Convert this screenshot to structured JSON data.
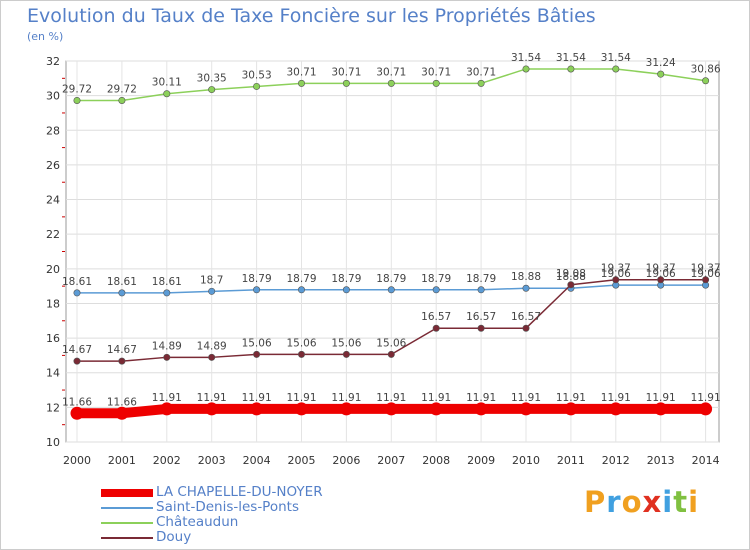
{
  "title": "Evolution du Taux de Taxe Foncière sur les Propriétés Bâties",
  "unit_label": "(en %)",
  "logo": {
    "letters": [
      "P",
      "r",
      "o",
      "x",
      "i",
      "t",
      "i"
    ],
    "colors": [
      "#f0a020",
      "#40a0e0",
      "#f0a020",
      "#e03020",
      "#40a0e0",
      "#80c040",
      "#f0a020"
    ]
  },
  "chart_data": {
    "type": "line",
    "x": [
      "2000",
      "2001",
      "2002",
      "2003",
      "2004",
      "2005",
      "2006",
      "2007",
      "2008",
      "2009",
      "2010",
      "2011",
      "2012",
      "2013",
      "2014"
    ],
    "ylim": [
      10,
      32
    ],
    "yticks": [
      10,
      12,
      14,
      16,
      18,
      20,
      22,
      24,
      26,
      28,
      30,
      32
    ],
    "grid": true,
    "legend_position": "bottom-left",
    "series": [
      {
        "name": "LA CHAPELLE-DU-NOYER",
        "color": "#ee0000",
        "values": [
          11.66,
          11.66,
          11.91,
          11.91,
          11.91,
          11.91,
          11.91,
          11.91,
          11.91,
          11.91,
          11.91,
          11.91,
          11.91,
          11.91,
          11.91
        ],
        "labels": [
          "11.66",
          "11.66",
          "11.91",
          "11.91",
          "11.91",
          "11.91",
          "11.91",
          "11.91",
          "11.91",
          "11.91",
          "11.91",
          "11.91",
          "11.91",
          "11.91",
          "11.91"
        ]
      },
      {
        "name": "Saint-Denis-les-Ponts",
        "color": "#5b9bd5",
        "values": [
          18.61,
          18.61,
          18.61,
          18.7,
          18.79,
          18.79,
          18.79,
          18.79,
          18.79,
          18.79,
          18.88,
          18.88,
          19.06,
          19.06,
          19.06
        ],
        "labels": [
          "18.61",
          "18.61",
          "18.61",
          "18.7",
          "18.79",
          "18.79",
          "18.79",
          "18.79",
          "18.79",
          "18.79",
          "18.88",
          "18.88",
          "19.06",
          "19.06",
          "19.06"
        ]
      },
      {
        "name": "Châteaudun",
        "color": "#8cd05a",
        "values": [
          29.72,
          29.72,
          30.11,
          30.35,
          30.53,
          30.71,
          30.71,
          30.71,
          30.71,
          30.71,
          31.54,
          31.54,
          31.54,
          31.24,
          30.86
        ],
        "labels": [
          "29.72",
          "29.72",
          "30.11",
          "30.35",
          "30.53",
          "30.71",
          "30.71",
          "30.71",
          "30.71",
          "30.71",
          "31.54",
          "31.54",
          "31.54",
          "31.24",
          "30.86"
        ]
      },
      {
        "name": "Douy",
        "color": "#7a2a35",
        "values": [
          14.67,
          14.67,
          14.89,
          14.89,
          15.06,
          15.06,
          15.06,
          15.06,
          16.57,
          16.57,
          16.57,
          19.08,
          19.37,
          19.37,
          19.37
        ],
        "labels": [
          "14.67",
          "14.67",
          "14.89",
          "14.89",
          "15.06",
          "15.06",
          "15.06",
          "15.06",
          "16.57",
          "16.57",
          "16.57",
          "19.08",
          "19.37",
          "19.37",
          "19.37"
        ]
      }
    ]
  }
}
